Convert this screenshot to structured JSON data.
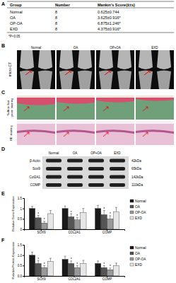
{
  "panel_labels": [
    "A",
    "B",
    "C",
    "D",
    "E",
    "F"
  ],
  "table": {
    "header": [
      "Group",
      "Number",
      "Mankin's Score(x̄±s)"
    ],
    "rows": [
      [
        "Normal",
        8,
        "0.625±0.744"
      ],
      [
        "OA",
        8,
        "3.625±0.916*"
      ],
      [
        "OP-OA",
        8,
        "6.875±1.246*"
      ],
      [
        "EXD",
        8,
        "4.375±0.916*"
      ]
    ],
    "footnote": "*P<0.05"
  },
  "micro_ct": {
    "label": "micro-CT",
    "columns": [
      "Normal",
      "OA",
      "OP+OA",
      "EXD"
    ]
  },
  "histology": {
    "rows": [
      "Saffron fast green staining",
      "HE staining"
    ]
  },
  "blot": {
    "columns": [
      "Normal",
      "OA",
      "OP+OA",
      "EXD"
    ],
    "rows": [
      {
        "name": "β-Actin",
        "size": "42kDa"
      },
      {
        "name": "Sox9",
        "size": "65kDa"
      },
      {
        "name": "Col2A1",
        "size": "142kDa"
      },
      {
        "name": "COMP",
        "size": "110kDa"
      }
    ]
  },
  "chart_data": [
    {
      "type": "bar",
      "y_label": "Relative Gene Expression",
      "categories": [
        "SOX9",
        "COL2A1",
        "COMP"
      ],
      "series": [
        {
          "name": "Normal",
          "color": "#1a1a1a",
          "values": [
            1.0,
            1.0,
            1.0
          ],
          "errors": [
            0.1,
            0.12,
            0.15
          ],
          "annotations": [
            null,
            null,
            null
          ]
        },
        {
          "name": "OA",
          "color": "#555555",
          "values": [
            0.55,
            0.6,
            0.7
          ],
          "errors": [
            0.12,
            0.15,
            0.2
          ],
          "annotations": [
            "*",
            "*",
            "*"
          ]
        },
        {
          "name": "OP-OA",
          "color": "#999999",
          "values": [
            0.3,
            0.45,
            0.5
          ],
          "errors": [
            0.08,
            0.12,
            0.15
          ],
          "annotations": [
            "*",
            "*",
            "*"
          ]
        },
        {
          "name": "EXD",
          "color": "#e6e6e6",
          "values": [
            0.75,
            0.8,
            0.85
          ],
          "errors": [
            0.15,
            0.2,
            0.2
          ],
          "annotations": [
            null,
            null,
            null
          ]
        }
      ],
      "ylim": [
        0,
        1.5
      ],
      "yticks": [
        0,
        0.5,
        1,
        1.5
      ],
      "legend": "right"
    },
    {
      "type": "bar",
      "y_label": "Relative Protein Expression",
      "categories": [
        "SOX9",
        "COL2A1",
        "COMP"
      ],
      "series": [
        {
          "name": "Normal",
          "color": "#1a1a1a",
          "values": [
            1.0,
            0.8,
            0.6
          ],
          "errors": [
            0.15,
            0.15,
            0.12
          ],
          "annotations": [
            null,
            null,
            null
          ]
        },
        {
          "name": "OA",
          "color": "#555555",
          "values": [
            0.6,
            0.6,
            0.4
          ],
          "errors": [
            0.15,
            0.12,
            0.1
          ],
          "annotations": [
            "*",
            "*",
            "*"
          ]
        },
        {
          "name": "OP-OA",
          "color": "#999999",
          "values": [
            0.4,
            0.4,
            0.3
          ],
          "errors": [
            0.1,
            0.1,
            0.08
          ],
          "annotations": [
            "*",
            "*",
            "*"
          ]
        },
        {
          "name": "EXD",
          "color": "#e6e6e6",
          "values": [
            0.7,
            0.6,
            0.5
          ],
          "errors": [
            0.15,
            0.15,
            0.12
          ],
          "annotations": [
            null,
            null,
            null
          ]
        }
      ],
      "ylim": [
        0,
        1.5
      ],
      "yticks": [
        {
          "value": 0,
          "label": "0.0"
        },
        {
          "value": 0.5,
          "label": "0.5"
        },
        {
          "value": 1,
          "label": "1.0"
        },
        {
          "value": 1.5,
          "label": "1.5"
        }
      ],
      "legend": "right"
    }
  ]
}
